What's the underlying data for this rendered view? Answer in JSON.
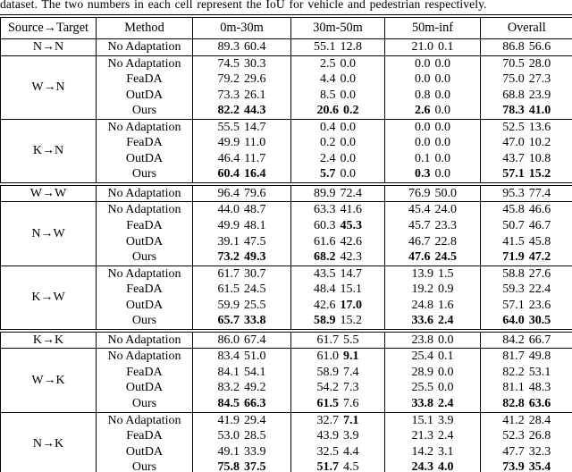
{
  "caption": "dataset. The two numbers in each cell represent the IoU for vehicle and pedestrian respectively.",
  "colors": {
    "text": "#000000",
    "background": "#ffffff"
  },
  "table": {
    "headers": [
      "Source→Target",
      "Method",
      "0m-30m",
      "30m-50m",
      "50m-inf",
      "Overall"
    ],
    "groups": [
      {
        "source_target": "N→N",
        "sep": "none",
        "rows": [
          {
            "method": "No Adaptation",
            "cells": [
              [
                "89.3",
                0,
                "60.4",
                0
              ],
              [
                "55.1",
                0,
                "12.8",
                0
              ],
              [
                "21.0",
                0,
                "0.1",
                0
              ],
              [
                "86.8",
                0,
                "56.6",
                0
              ]
            ]
          }
        ]
      },
      {
        "source_target": "W→N",
        "sep": "single",
        "rows": [
          {
            "method": "No Adaptation",
            "cells": [
              [
                "74.5",
                0,
                "30.3",
                0
              ],
              [
                "2.5",
                0,
                "0.0",
                0
              ],
              [
                "0.0",
                0,
                "0.0",
                0
              ],
              [
                "70.5",
                0,
                "28.0",
                0
              ]
            ]
          },
          {
            "method": "FeaDA",
            "cells": [
              [
                "79.2",
                0,
                "29.6",
                0
              ],
              [
                "4.4",
                0,
                "0.0",
                0
              ],
              [
                "0.0",
                0,
                "0.0",
                0
              ],
              [
                "75.0",
                0,
                "27.3",
                0
              ]
            ]
          },
          {
            "method": "OutDA",
            "cells": [
              [
                "73.3",
                0,
                "26.1",
                0
              ],
              [
                "8.5",
                0,
                "0.0",
                0
              ],
              [
                "0.8",
                0,
                "0.0",
                0
              ],
              [
                "68.8",
                0,
                "23.9",
                0
              ]
            ]
          },
          {
            "method": "Ours",
            "cells": [
              [
                "82.2",
                1,
                "44.3",
                1
              ],
              [
                "20.6",
                1,
                "0.2",
                1
              ],
              [
                "2.6",
                1,
                "0.0",
                0
              ],
              [
                "78.3",
                1,
                "41.0",
                1
              ]
            ]
          }
        ]
      },
      {
        "source_target": "K→N",
        "sep": "single",
        "rows": [
          {
            "method": "No Adaptation",
            "cells": [
              [
                "55.5",
                0,
                "14.7",
                0
              ],
              [
                "0.4",
                0,
                "0.0",
                0
              ],
              [
                "0.0",
                0,
                "0.0",
                0
              ],
              [
                "52.5",
                0,
                "13.6",
                0
              ]
            ]
          },
          {
            "method": "FeaDA",
            "cells": [
              [
                "49.9",
                0,
                "11.0",
                0
              ],
              [
                "0.2",
                0,
                "0.0",
                0
              ],
              [
                "0.0",
                0,
                "0.0",
                0
              ],
              [
                "47.0",
                0,
                "10.2",
                0
              ]
            ]
          },
          {
            "method": "OutDA",
            "cells": [
              [
                "46.4",
                0,
                "11.7",
                0
              ],
              [
                "2.4",
                0,
                "0.0",
                0
              ],
              [
                "0.1",
                0,
                "0.0",
                0
              ],
              [
                "43.7",
                0,
                "10.8",
                0
              ]
            ]
          },
          {
            "method": "Ours",
            "cells": [
              [
                "60.4",
                1,
                "16.4",
                1
              ],
              [
                "5.7",
                1,
                "0.0",
                0
              ],
              [
                "0.3",
                1,
                "0.0",
                0
              ],
              [
                "57.1",
                1,
                "15.2",
                1
              ]
            ]
          }
        ]
      },
      {
        "source_target": "W→W",
        "sep": "double",
        "rows": [
          {
            "method": "No Adaptation",
            "cells": [
              [
                "96.4",
                0,
                "79.6",
                0
              ],
              [
                "89.9",
                0,
                "72.4",
                0
              ],
              [
                "76.9",
                0,
                "50.0",
                0
              ],
              [
                "95.3",
                0,
                "77.4",
                0
              ]
            ]
          }
        ]
      },
      {
        "source_target": "N→W",
        "sep": "single",
        "rows": [
          {
            "method": "No Adaptation",
            "cells": [
              [
                "44.0",
                0,
                "48.7",
                0
              ],
              [
                "63.3",
                0,
                "41.6",
                0
              ],
              [
                "45.4",
                0,
                "24.0",
                0
              ],
              [
                "45.8",
                0,
                "46.6",
                0
              ]
            ]
          },
          {
            "method": "FeaDA",
            "cells": [
              [
                "49.9",
                0,
                "48.1",
                0
              ],
              [
                "60.3",
                0,
                "45.3",
                1
              ],
              [
                "45.7",
                0,
                "23.3",
                0
              ],
              [
                "50.7",
                0,
                "46.7",
                0
              ]
            ]
          },
          {
            "method": "OutDA",
            "cells": [
              [
                "39.1",
                0,
                "47.5",
                0
              ],
              [
                "61.6",
                0,
                "42.6",
                0
              ],
              [
                "46.7",
                0,
                "22.8",
                0
              ],
              [
                "41.5",
                0,
                "45.8",
                0
              ]
            ]
          },
          {
            "method": "Ours",
            "cells": [
              [
                "73.2",
                1,
                "49.3",
                1
              ],
              [
                "68.2",
                1,
                "42.3",
                0
              ],
              [
                "47.6",
                1,
                "24.5",
                1
              ],
              [
                "71.9",
                1,
                "47.2",
                1
              ]
            ]
          }
        ]
      },
      {
        "source_target": "K→W",
        "sep": "single",
        "rows": [
          {
            "method": "No Adaptation",
            "cells": [
              [
                "61.7",
                0,
                "30.7",
                0
              ],
              [
                "43.5",
                0,
                "14.7",
                0
              ],
              [
                "13.9",
                0,
                "1.5",
                0
              ],
              [
                "58.8",
                0,
                "27.6",
                0
              ]
            ]
          },
          {
            "method": "FeaDA",
            "cells": [
              [
                "61.5",
                0,
                "24.5",
                0
              ],
              [
                "48.4",
                0,
                "15.1",
                0
              ],
              [
                "19.2",
                0,
                "0.9",
                0
              ],
              [
                "59.3",
                0,
                "22.4",
                0
              ]
            ]
          },
          {
            "method": "OutDA",
            "cells": [
              [
                "59.9",
                0,
                "25.5",
                0
              ],
              [
                "42.6",
                0,
                "17.0",
                1
              ],
              [
                "24.8",
                0,
                "1.6",
                0
              ],
              [
                "57.1",
                0,
                "23.6",
                0
              ]
            ]
          },
          {
            "method": "Ours",
            "cells": [
              [
                "65.7",
                1,
                "33.8",
                1
              ],
              [
                "58.9",
                1,
                "15.2",
                0
              ],
              [
                "33.6",
                1,
                "2.4",
                1
              ],
              [
                "64.0",
                1,
                "30.5",
                1
              ]
            ]
          }
        ]
      },
      {
        "source_target": "K→K",
        "sep": "double",
        "rows": [
          {
            "method": "No Adaptation",
            "cells": [
              [
                "86.0",
                0,
                "67.4",
                0
              ],
              [
                "61.7",
                0,
                "5.5",
                0
              ],
              [
                "23.8",
                0,
                "0.0",
                0
              ],
              [
                "84.2",
                0,
                "66.7",
                0
              ]
            ]
          }
        ]
      },
      {
        "source_target": "W→K",
        "sep": "single",
        "rows": [
          {
            "method": "No Adaptation",
            "cells": [
              [
                "83.4",
                0,
                "51.0",
                0
              ],
              [
                "61.0",
                0,
                "9.1",
                1
              ],
              [
                "25.4",
                0,
                "0.1",
                0
              ],
              [
                "81.7",
                0,
                "49.8",
                0
              ]
            ]
          },
          {
            "method": "FeaDA",
            "cells": [
              [
                "84.1",
                0,
                "54.1",
                0
              ],
              [
                "58.9",
                0,
                "7.4",
                0
              ],
              [
                "28.9",
                0,
                "0.0",
                0
              ],
              [
                "82.2",
                0,
                "53.1",
                0
              ]
            ]
          },
          {
            "method": "OutDA",
            "cells": [
              [
                "83.2",
                0,
                "49.2",
                0
              ],
              [
                "54.2",
                0,
                "7.3",
                0
              ],
              [
                "25.5",
                0,
                "0.0",
                0
              ],
              [
                "81.1",
                0,
                "48.3",
                0
              ]
            ]
          },
          {
            "method": "Ours",
            "cells": [
              [
                "84.5",
                1,
                "66.3",
                1
              ],
              [
                "61.5",
                1,
                "7.6",
                0
              ],
              [
                "33.8",
                1,
                "2.4",
                1
              ],
              [
                "82.8",
                1,
                "63.6",
                1
              ]
            ]
          }
        ]
      },
      {
        "source_target": "N→K",
        "sep": "single",
        "rows": [
          {
            "method": "No Adaptation",
            "cells": [
              [
                "41.9",
                0,
                "29.4",
                0
              ],
              [
                "32.7",
                0,
                "7.1",
                1
              ],
              [
                "15.1",
                0,
                "3.9",
                0
              ],
              [
                "41.2",
                0,
                "28.4",
                0
              ]
            ]
          },
          {
            "method": "FeaDA",
            "cells": [
              [
                "53.0",
                0,
                "28.5",
                0
              ],
              [
                "43.9",
                0,
                "3.9",
                0
              ],
              [
                "21.3",
                0,
                "2.4",
                0
              ],
              [
                "52.3",
                0,
                "26.8",
                0
              ]
            ]
          },
          {
            "method": "OutDA",
            "cells": [
              [
                "49.1",
                0,
                "33.9",
                0
              ],
              [
                "32.5",
                0,
                "4.4",
                0
              ],
              [
                "14.2",
                0,
                "3.1",
                0
              ],
              [
                "47.7",
                0,
                "32.3",
                0
              ]
            ]
          },
          {
            "method": "Ours",
            "cells": [
              [
                "75.8",
                1,
                "37.5",
                1
              ],
              [
                "51.7",
                1,
                "4.5",
                0
              ],
              [
                "24.3",
                1,
                "4.0",
                1
              ],
              [
                "73.9",
                1,
                "35.4",
                1
              ]
            ]
          }
        ]
      }
    ]
  }
}
